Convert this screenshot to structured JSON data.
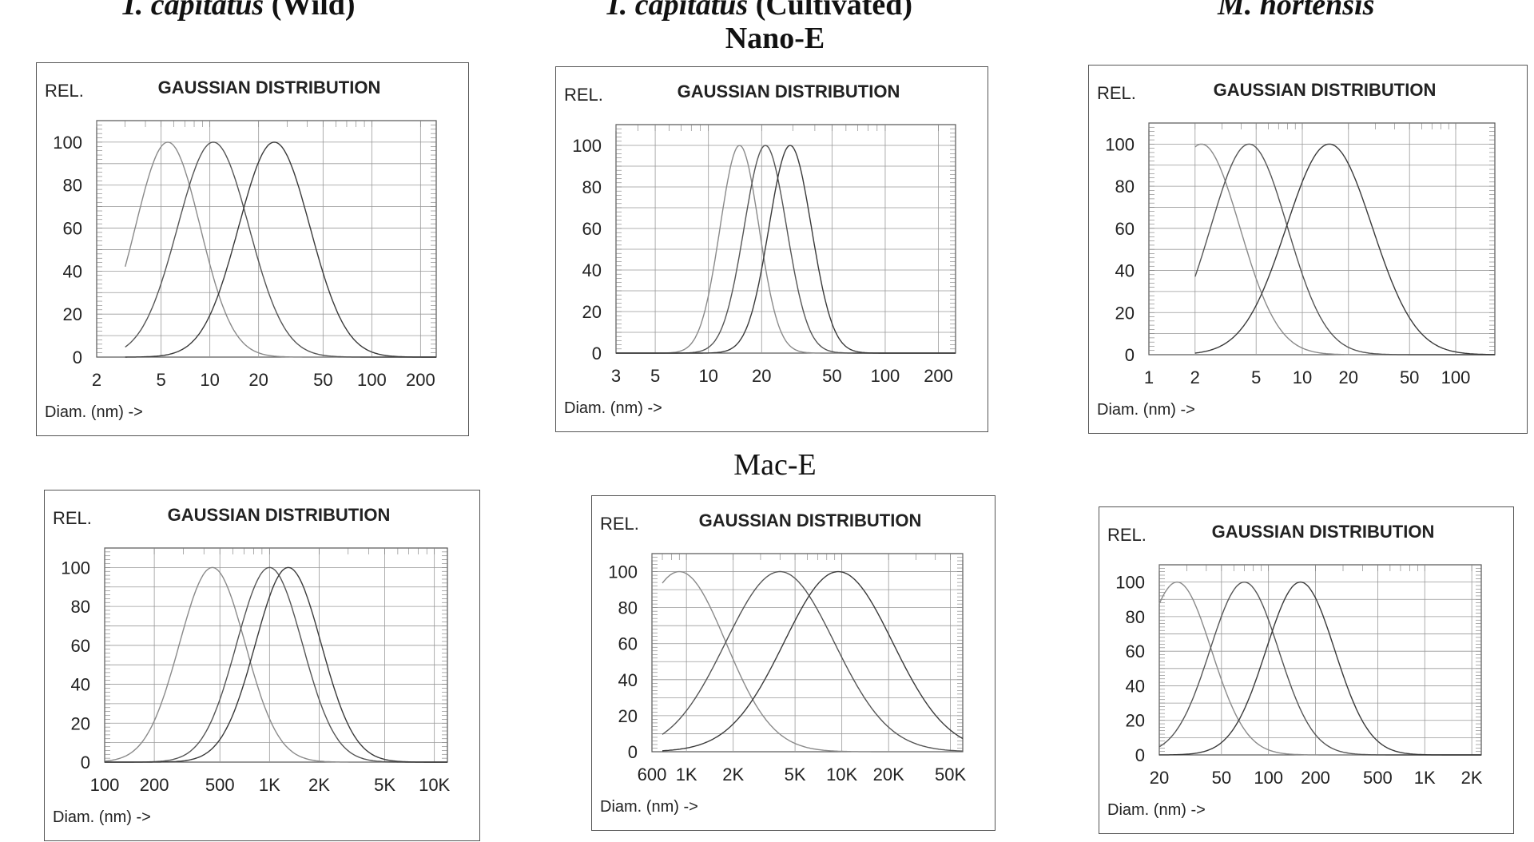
{
  "columns": [
    {
      "species": "T. capitatus",
      "qualifier": "(Wild)"
    },
    {
      "species": "T. capitatus",
      "qualifier": "(Cultivated)"
    },
    {
      "species": "M. hortensis",
      "qualifier": ""
    }
  ],
  "sections": {
    "nano": "Nano-E",
    "mac": "Mac-E"
  },
  "panel_labels": {
    "rel": "REL.",
    "title": "GAUSSIAN DISTRIBUTION",
    "xlabel": "Diam. (nm) ->"
  },
  "chart_data": [
    {
      "type": "line",
      "row": "Nano-E",
      "column": "T. capitatus (Wild)",
      "title": "GAUSSIAN DISTRIBUTION",
      "ylabel": "REL.",
      "xlabel": "Diam. (nm) ->",
      "xscale": "log",
      "xlim": [
        2,
        250
      ],
      "ylim": [
        0,
        110
      ],
      "xticks": [
        2,
        5,
        10,
        20,
        50,
        100,
        200
      ],
      "xticklabels": [
        "2",
        "5",
        "10",
        "20",
        "50",
        "100",
        "200"
      ],
      "yticks": [
        0,
        20,
        40,
        60,
        80,
        100
      ],
      "series": [
        {
          "peak": 5.5,
          "sigma": 0.2,
          "start": 3,
          "color": "#8a8a8a"
        },
        {
          "peak": 10.5,
          "sigma": 0.22,
          "start": 3,
          "color": "#555555"
        },
        {
          "peak": 25,
          "sigma": 0.22,
          "start": 3,
          "color": "#3a3a3a"
        }
      ]
    },
    {
      "type": "line",
      "row": "Nano-E",
      "column": "T. capitatus (Cultivated)",
      "title": "GAUSSIAN DISTRIBUTION",
      "ylabel": "REL.",
      "xlabel": "Diam. (nm) ->",
      "xscale": "log",
      "xlim": [
        3,
        250
      ],
      "ylim": [
        0,
        110
      ],
      "xticks": [
        3,
        5,
        10,
        20,
        50,
        100,
        200
      ],
      "xticklabels": [
        "3",
        "5",
        "10",
        "20",
        "50",
        "100",
        "200"
      ],
      "yticks": [
        0,
        20,
        40,
        60,
        80,
        100
      ],
      "series": [
        {
          "peak": 15,
          "sigma": 0.11,
          "start": 3,
          "color": "#8a8a8a"
        },
        {
          "peak": 21,
          "sigma": 0.12,
          "start": 3,
          "color": "#555555"
        },
        {
          "peak": 29,
          "sigma": 0.12,
          "start": 3,
          "color": "#3a3a3a"
        }
      ]
    },
    {
      "type": "line",
      "row": "Nano-E",
      "column": "M. hortensis",
      "title": "GAUSSIAN DISTRIBUTION",
      "ylabel": "REL.",
      "xlabel": "Diam. (nm) ->",
      "xscale": "log",
      "xlim": [
        1,
        180
      ],
      "ylim": [
        0,
        110
      ],
      "xticks": [
        1,
        2,
        5,
        10,
        20,
        50,
        100
      ],
      "xticklabels": [
        "1",
        "2",
        "5",
        "10",
        "20",
        "50",
        "100"
      ],
      "yticks": [
        0,
        20,
        40,
        60,
        80,
        100
      ],
      "series": [
        {
          "peak": 2.2,
          "sigma": 0.25,
          "start": 2,
          "color": "#8a8a8a"
        },
        {
          "peak": 4.5,
          "sigma": 0.25,
          "start": 2,
          "color": "#555555"
        },
        {
          "peak": 15,
          "sigma": 0.28,
          "start": 2,
          "color": "#3a3a3a"
        }
      ]
    },
    {
      "type": "line",
      "row": "Mac-E",
      "column": "T. capitatus (Wild)",
      "title": "GAUSSIAN DISTRIBUTION",
      "ylabel": "REL.",
      "xlabel": "Diam. (nm) ->",
      "xscale": "log",
      "xlim": [
        100,
        12000
      ],
      "ylim": [
        0,
        110
      ],
      "xticks": [
        100,
        200,
        500,
        1000,
        2000,
        5000,
        10000
      ],
      "xticklabels": [
        "100",
        "200",
        "500",
        "1K",
        "2K",
        "5K",
        "10K"
      ],
      "yticks": [
        0,
        20,
        40,
        60,
        80,
        100
      ],
      "series": [
        {
          "peak": 450,
          "sigma": 0.2,
          "start": 100,
          "color": "#8a8a8a"
        },
        {
          "peak": 1000,
          "sigma": 0.2,
          "start": 100,
          "color": "#555555"
        },
        {
          "peak": 1300,
          "sigma": 0.2,
          "start": 100,
          "color": "#3a3a3a"
        }
      ]
    },
    {
      "type": "line",
      "row": "Mac-E",
      "column": "T. capitatus (Cultivated)",
      "title": "GAUSSIAN DISTRIBUTION",
      "ylabel": "REL.",
      "xlabel": "Diam. (nm) ->",
      "xscale": "log",
      "xlim": [
        600,
        60000
      ],
      "ylim": [
        0,
        110
      ],
      "xticks": [
        600,
        1000,
        2000,
        5000,
        10000,
        20000,
        50000
      ],
      "xticklabels": [
        "600",
        "1K",
        "2K",
        "5K",
        "10K",
        "20K",
        "50K"
      ],
      "yticks": [
        0,
        20,
        40,
        60,
        80,
        100
      ],
      "series": [
        {
          "peak": 900,
          "sigma": 0.3,
          "start": 700,
          "color": "#8a8a8a"
        },
        {
          "peak": 4000,
          "sigma": 0.35,
          "start": 700,
          "color": "#555555"
        },
        {
          "peak": 9500,
          "sigma": 0.35,
          "start": 700,
          "color": "#3a3a3a"
        }
      ]
    },
    {
      "type": "line",
      "row": "Mac-E",
      "column": "M. hortensis",
      "title": "GAUSSIAN DISTRIBUTION",
      "ylabel": "REL.",
      "xlabel": "Diam. (nm) ->",
      "xscale": "log",
      "xlim": [
        20,
        2300
      ],
      "ylim": [
        0,
        110
      ],
      "xticks": [
        20,
        50,
        100,
        200,
        500,
        1000,
        2000
      ],
      "xticklabels": [
        "20",
        "50",
        "100",
        "200",
        "500",
        "1K",
        "2K"
      ],
      "yticks": [
        0,
        20,
        40,
        60,
        80,
        100
      ],
      "series": [
        {
          "peak": 26,
          "sigma": 0.22,
          "start": 20,
          "color": "#8a8a8a"
        },
        {
          "peak": 70,
          "sigma": 0.22,
          "start": 20,
          "color": "#555555"
        },
        {
          "peak": 160,
          "sigma": 0.22,
          "start": 20,
          "color": "#3a3a3a"
        }
      ]
    }
  ]
}
